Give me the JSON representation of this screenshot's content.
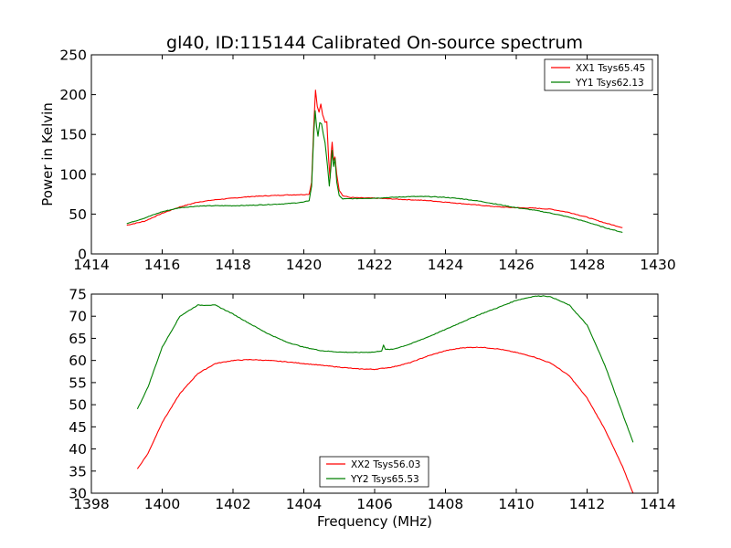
{
  "title": "gl40, ID:115144 Calibrated On-source spectrum",
  "chart_data": [
    {
      "type": "line",
      "xlabel": "",
      "ylabel": "Power in Kelvin",
      "xlim": [
        1414,
        1430
      ],
      "ylim": [
        0,
        250
      ],
      "xticks": [
        1414,
        1416,
        1418,
        1420,
        1422,
        1424,
        1426,
        1428,
        1430
      ],
      "yticks": [
        0,
        50,
        100,
        150,
        200,
        250
      ],
      "grid": false,
      "legend_position": "top-right",
      "series": [
        {
          "name": "XX1 Tsys65.45",
          "color": "#ff0000",
          "points": [
            [
              1415.0,
              36
            ],
            [
              1415.5,
              41
            ],
            [
              1416.0,
              51
            ],
            [
              1416.5,
              59
            ],
            [
              1417.0,
              65
            ],
            [
              1417.5,
              68
            ],
            [
              1418.0,
              70
            ],
            [
              1418.5,
              72
            ],
            [
              1419.0,
              73
            ],
            [
              1419.5,
              74
            ],
            [
              1420.0,
              74.5
            ],
            [
              1420.15,
              75
            ],
            [
              1420.22,
              90
            ],
            [
              1420.28,
              160
            ],
            [
              1420.33,
              206
            ],
            [
              1420.38,
              185
            ],
            [
              1420.43,
              178
            ],
            [
              1420.48,
              188
            ],
            [
              1420.53,
              175
            ],
            [
              1420.6,
              165
            ],
            [
              1420.65,
              166
            ],
            [
              1420.7,
              120
            ],
            [
              1420.74,
              95
            ],
            [
              1420.77,
              125
            ],
            [
              1420.8,
              140
            ],
            [
              1420.84,
              118
            ],
            [
              1420.88,
              122
            ],
            [
              1420.93,
              100
            ],
            [
              1421.0,
              80
            ],
            [
              1421.1,
              73
            ],
            [
              1421.3,
              71
            ],
            [
              1421.5,
              70.5
            ],
            [
              1422.0,
              70
            ],
            [
              1422.5,
              69
            ],
            [
              1423.0,
              68
            ],
            [
              1423.5,
              67
            ],
            [
              1424.0,
              65
            ],
            [
              1424.5,
              63
            ],
            [
              1425.0,
              61
            ],
            [
              1425.5,
              59
            ],
            [
              1426.0,
              58
            ],
            [
              1426.5,
              57.5
            ],
            [
              1427.0,
              56
            ],
            [
              1427.5,
              52
            ],
            [
              1428.0,
              46
            ],
            [
              1428.5,
              39
            ],
            [
              1429.0,
              33
            ]
          ]
        },
        {
          "name": "YY1 Tsys62.13",
          "color": "#008000",
          "points": [
            [
              1415.0,
              38
            ],
            [
              1415.5,
              45
            ],
            [
              1416.0,
              53
            ],
            [
              1416.5,
              58
            ],
            [
              1417.0,
              60
            ],
            [
              1417.5,
              60.5
            ],
            [
              1418.0,
              60.5
            ],
            [
              1418.5,
              61
            ],
            [
              1419.0,
              62
            ],
            [
              1419.5,
              63
            ],
            [
              1420.0,
              65
            ],
            [
              1420.15,
              67
            ],
            [
              1420.22,
              85
            ],
            [
              1420.28,
              150
            ],
            [
              1420.32,
              180
            ],
            [
              1420.36,
              160
            ],
            [
              1420.4,
              148
            ],
            [
              1420.45,
              165
            ],
            [
              1420.5,
              163
            ],
            [
              1420.55,
              150
            ],
            [
              1420.6,
              140
            ],
            [
              1420.67,
              110
            ],
            [
              1420.72,
              85
            ],
            [
              1420.77,
              110
            ],
            [
              1420.8,
              130
            ],
            [
              1420.84,
              110
            ],
            [
              1420.88,
              120
            ],
            [
              1420.93,
              90
            ],
            [
              1421.0,
              73
            ],
            [
              1421.1,
              69
            ],
            [
              1421.5,
              69.5
            ],
            [
              1422.0,
              70
            ],
            [
              1422.5,
              71
            ],
            [
              1423.0,
              72
            ],
            [
              1423.5,
              72
            ],
            [
              1424.0,
              71
            ],
            [
              1424.5,
              69
            ],
            [
              1425.0,
              66
            ],
            [
              1425.5,
              62
            ],
            [
              1426.0,
              58
            ],
            [
              1426.5,
              55
            ],
            [
              1427.0,
              51
            ],
            [
              1427.5,
              46
            ],
            [
              1428.0,
              40
            ],
            [
              1428.5,
              33
            ],
            [
              1429.0,
              27
            ]
          ]
        }
      ]
    },
    {
      "type": "line",
      "xlabel": "Frequency (MHz)",
      "ylabel": "",
      "xlim": [
        1398,
        1414
      ],
      "ylim": [
        30,
        75
      ],
      "xticks": [
        1398,
        1400,
        1402,
        1404,
        1406,
        1408,
        1410,
        1412,
        1414
      ],
      "yticks": [
        30,
        35,
        40,
        45,
        50,
        55,
        60,
        65,
        70,
        75
      ],
      "grid": false,
      "legend_position": "lower-center",
      "series": [
        {
          "name": "XX2 Tsys56.03",
          "color": "#ff0000",
          "points": [
            [
              1399.3,
              35.5
            ],
            [
              1399.6,
              39
            ],
            [
              1400.0,
              46
            ],
            [
              1400.5,
              52.5
            ],
            [
              1401.0,
              57
            ],
            [
              1401.5,
              59.3
            ],
            [
              1402.0,
              60
            ],
            [
              1402.5,
              60.2
            ],
            [
              1403.0,
              60
            ],
            [
              1403.5,
              59.7
            ],
            [
              1404.0,
              59.3
            ],
            [
              1404.5,
              58.9
            ],
            [
              1405.0,
              58.5
            ],
            [
              1405.5,
              58.1
            ],
            [
              1406.0,
              58
            ],
            [
              1406.5,
              58.5
            ],
            [
              1407.0,
              59.5
            ],
            [
              1407.5,
              61
            ],
            [
              1408.0,
              62.2
            ],
            [
              1408.5,
              62.9
            ],
            [
              1409.0,
              63
            ],
            [
              1409.5,
              62.6
            ],
            [
              1410.0,
              61.8
            ],
            [
              1410.5,
              60.8
            ],
            [
              1411.0,
              59.3
            ],
            [
              1411.5,
              56.5
            ],
            [
              1412.0,
              51.5
            ],
            [
              1412.5,
              44.5
            ],
            [
              1413.0,
              36
            ],
            [
              1413.3,
              30
            ]
          ]
        },
        {
          "name": "YY2 Tsys65.53",
          "color": "#008000",
          "points": [
            [
              1399.3,
              49
            ],
            [
              1399.6,
              54
            ],
            [
              1400.0,
              63
            ],
            [
              1400.5,
              70
            ],
            [
              1401.0,
              72.5
            ],
            [
              1401.5,
              72.5
            ],
            [
              1402.0,
              70.5
            ],
            [
              1402.5,
              68.2
            ],
            [
              1403.0,
              66
            ],
            [
              1403.5,
              64.2
            ],
            [
              1404.0,
              63
            ],
            [
              1404.5,
              62.2
            ],
            [
              1405.0,
              61.9
            ],
            [
              1405.5,
              61.8
            ],
            [
              1406.0,
              61.9
            ],
            [
              1406.2,
              62.2
            ],
            [
              1406.25,
              63.5
            ],
            [
              1406.3,
              62.5
            ],
            [
              1406.5,
              62.5
            ],
            [
              1407.0,
              63.7
            ],
            [
              1407.5,
              65.3
            ],
            [
              1408.0,
              67
            ],
            [
              1408.5,
              68.8
            ],
            [
              1409.0,
              70.5
            ],
            [
              1409.5,
              72
            ],
            [
              1410.0,
              73.6
            ],
            [
              1410.5,
              74.5
            ],
            [
              1410.8,
              74.6
            ],
            [
              1411.0,
              74.3
            ],
            [
              1411.5,
              72.5
            ],
            [
              1412.0,
              68
            ],
            [
              1412.5,
              59
            ],
            [
              1413.0,
              48
            ],
            [
              1413.3,
              41.5
            ]
          ]
        }
      ]
    }
  ]
}
